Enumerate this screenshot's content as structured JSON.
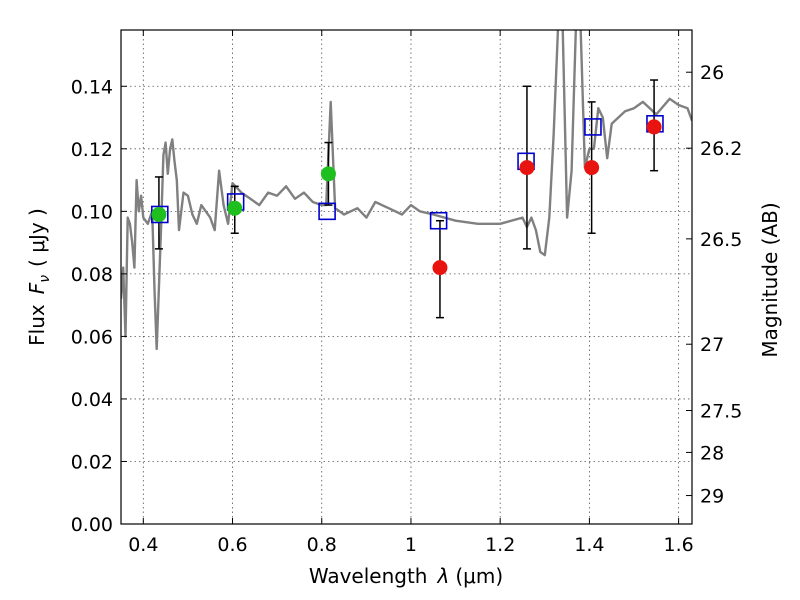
{
  "chart_data": {
    "type": "scatter",
    "xlabel_prefix": "Wavelength",
    "xlabel_symbol": "λ",
    "xlabel_unit": "(μm)",
    "ylabel_prefix": "Flux",
    "ylabel_symbol": "F",
    "ylabel_subscript": "ν",
    "ylabel_unit": "( μJy )",
    "ylabel_right": "Magnitude (AB)",
    "xlim": [
      0.35,
      1.63
    ],
    "ylim": [
      0.0,
      0.158
    ],
    "xticks": [
      0.4,
      0.6,
      0.8,
      1.0,
      1.2,
      1.4,
      1.6
    ],
    "xtick_labels": [
      "0.4",
      "0.6",
      "0.8",
      "1",
      "1.2",
      "1.4",
      "1.6"
    ],
    "yticks": [
      0.0,
      0.02,
      0.04,
      0.06,
      0.08,
      0.1,
      0.12,
      0.14
    ],
    "ytick_labels": [
      "0.00",
      "0.02",
      "0.04",
      "0.06",
      "0.08",
      "0.10",
      "0.12",
      "0.14"
    ],
    "right_ticks": [
      {
        "flux": 0.1445,
        "label": "26"
      },
      {
        "flux": 0.1202,
        "label": "26.2"
      },
      {
        "flux": 0.0912,
        "label": "26.5"
      },
      {
        "flux": 0.0575,
        "label": "27"
      },
      {
        "flux": 0.0363,
        "label": "27.5"
      },
      {
        "flux": 0.0229,
        "label": "28"
      },
      {
        "flux": 0.0091,
        "label": "29"
      }
    ],
    "grid": true,
    "series": [
      {
        "name": "model-spectrum",
        "kind": "line",
        "color": "#808080",
        "x": [
          0.35,
          0.355,
          0.36,
          0.365,
          0.37,
          0.375,
          0.38,
          0.385,
          0.39,
          0.395,
          0.4,
          0.41,
          0.42,
          0.425,
          0.43,
          0.44,
          0.445,
          0.45,
          0.455,
          0.46,
          0.465,
          0.47,
          0.475,
          0.48,
          0.49,
          0.5,
          0.51,
          0.52,
          0.53,
          0.55,
          0.56,
          0.57,
          0.58,
          0.59,
          0.6,
          0.62,
          0.64,
          0.66,
          0.68,
          0.7,
          0.72,
          0.74,
          0.76,
          0.78,
          0.8,
          0.81,
          0.82,
          0.83,
          0.84,
          0.85,
          0.88,
          0.9,
          0.92,
          0.95,
          0.98,
          1.0,
          1.02,
          1.05,
          1.1,
          1.15,
          1.2,
          1.25,
          1.26,
          1.27,
          1.28,
          1.29,
          1.3,
          1.31,
          1.32,
          1.33,
          1.34,
          1.35,
          1.36,
          1.37,
          1.38,
          1.39,
          1.4,
          1.41,
          1.42,
          1.43,
          1.44,
          1.45,
          1.48,
          1.5,
          1.52,
          1.55,
          1.58,
          1.6,
          1.62,
          1.63
        ],
        "y": [
          0.072,
          0.082,
          0.06,
          0.098,
          0.096,
          0.09,
          0.082,
          0.11,
          0.1,
          0.105,
          0.098,
          0.096,
          0.1,
          0.075,
          0.056,
          0.095,
          0.118,
          0.122,
          0.112,
          0.12,
          0.123,
          0.116,
          0.11,
          0.094,
          0.106,
          0.105,
          0.099,
          0.096,
          0.102,
          0.098,
          0.094,
          0.113,
          0.102,
          0.096,
          0.109,
          0.106,
          0.104,
          0.102,
          0.106,
          0.105,
          0.108,
          0.104,
          0.106,
          0.103,
          0.102,
          0.102,
          0.135,
          0.101,
          0.1,
          0.099,
          0.101,
          0.098,
          0.103,
          0.101,
          0.099,
          0.102,
          0.1,
          0.099,
          0.097,
          0.096,
          0.096,
          0.098,
          0.095,
          0.098,
          0.094,
          0.087,
          0.086,
          0.098,
          0.125,
          0.16,
          0.16,
          0.098,
          0.113,
          0.16,
          0.16,
          0.114,
          0.12,
          0.12,
          0.133,
          0.13,
          0.117,
          0.128,
          0.132,
          0.133,
          0.135,
          0.131,
          0.136,
          0.134,
          0.133,
          0.129
        ]
      },
      {
        "name": "green-points",
        "kind": "circle",
        "color": "#1fbf1f",
        "x": [
          0.435,
          0.605,
          0.815
        ],
        "y": [
          0.099,
          0.101,
          0.112
        ]
      },
      {
        "name": "red-points",
        "kind": "circle",
        "color": "#e8140f",
        "x": [
          1.065,
          1.26,
          1.405,
          1.545
        ],
        "y": [
          0.082,
          0.114,
          0.114,
          0.127
        ]
      },
      {
        "name": "blue-squares",
        "kind": "square",
        "color": "#0000cc",
        "x": [
          0.437,
          0.607,
          0.812,
          1.062,
          1.258,
          1.408,
          1.547
        ],
        "y": [
          0.099,
          0.103,
          0.1,
          0.097,
          0.116,
          0.127,
          0.128
        ]
      }
    ],
    "errorbars": [
      {
        "x": 0.435,
        "low": 0.088,
        "high": 0.111
      },
      {
        "x": 0.605,
        "low": 0.093,
        "high": 0.108
      },
      {
        "x": 0.815,
        "low": 0.102,
        "high": 0.122
      },
      {
        "x": 1.065,
        "low": 0.066,
        "high": 0.097
      },
      {
        "x": 1.26,
        "low": 0.088,
        "high": 0.14
      },
      {
        "x": 1.405,
        "low": 0.093,
        "high": 0.135
      },
      {
        "x": 1.545,
        "low": 0.113,
        "high": 0.142
      }
    ]
  }
}
